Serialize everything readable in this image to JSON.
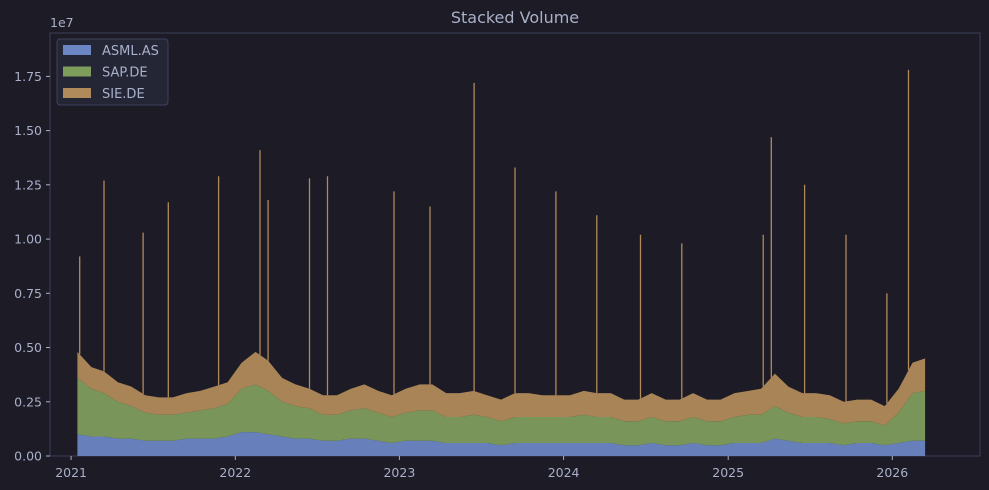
{
  "chart_data": {
    "type": "area",
    "stacked": true,
    "title": "Stacked Volume",
    "xlabel": "",
    "ylabel": "",
    "y_multiplier_label": "1e7",
    "x_tick_labels": [
      "2021",
      "2022",
      "2023",
      "2024",
      "2025",
      "2026"
    ],
    "y_tick_labels": [
      "0.00",
      "0.25",
      "0.50",
      "0.75",
      "1.00",
      "1.25",
      "1.50",
      "1.75"
    ],
    "y_ticks": [
      0,
      0.25,
      0.5,
      0.75,
      1.0,
      1.25,
      1.5,
      1.75
    ],
    "xlim": [
      "2020-11-15",
      "2026-07-15"
    ],
    "ylim": [
      0,
      1.95
    ],
    "grid": false,
    "legend_position": "top-left",
    "x": [
      "2021-01",
      "2021-02",
      "2021-03",
      "2021-04",
      "2021-05",
      "2021-06",
      "2021-07",
      "2021-08",
      "2021-09",
      "2021-10",
      "2021-11",
      "2021-12",
      "2022-01",
      "2022-02",
      "2022-03",
      "2022-04",
      "2022-05",
      "2022-06",
      "2022-07",
      "2022-08",
      "2022-09",
      "2022-10",
      "2022-11",
      "2022-12",
      "2023-01",
      "2023-02",
      "2023-03",
      "2023-04",
      "2023-05",
      "2023-06",
      "2023-07",
      "2023-08",
      "2023-09",
      "2023-10",
      "2023-11",
      "2023-12",
      "2024-01",
      "2024-02",
      "2024-03",
      "2024-04",
      "2024-05",
      "2024-06",
      "2024-07",
      "2024-08",
      "2024-09",
      "2024-10",
      "2024-11",
      "2024-12",
      "2025-01",
      "2025-02",
      "2025-03",
      "2025-04",
      "2025-05",
      "2025-06",
      "2025-07",
      "2025-08",
      "2025-09",
      "2025-10",
      "2025-11",
      "2025-12",
      "2026-01",
      "2026-02",
      "2026-03"
    ],
    "series": [
      {
        "name": "ASML.AS",
        "color": "#6c86c4",
        "values": [
          0.1,
          0.09,
          0.09,
          0.08,
          0.08,
          0.07,
          0.07,
          0.07,
          0.08,
          0.08,
          0.08,
          0.09,
          0.11,
          0.11,
          0.1,
          0.09,
          0.08,
          0.08,
          0.07,
          0.07,
          0.08,
          0.08,
          0.07,
          0.06,
          0.07,
          0.07,
          0.07,
          0.06,
          0.06,
          0.06,
          0.06,
          0.05,
          0.06,
          0.06,
          0.06,
          0.06,
          0.06,
          0.06,
          0.06,
          0.06,
          0.05,
          0.05,
          0.06,
          0.05,
          0.05,
          0.06,
          0.05,
          0.05,
          0.06,
          0.06,
          0.06,
          0.08,
          0.07,
          0.06,
          0.06,
          0.06,
          0.05,
          0.06,
          0.06,
          0.05,
          0.06,
          0.07,
          0.07
        ]
      },
      {
        "name": "SAP.DE",
        "color": "#7e9c5c",
        "values": [
          0.26,
          0.22,
          0.2,
          0.17,
          0.15,
          0.13,
          0.12,
          0.12,
          0.12,
          0.13,
          0.14,
          0.15,
          0.2,
          0.22,
          0.2,
          0.16,
          0.15,
          0.14,
          0.12,
          0.12,
          0.13,
          0.14,
          0.13,
          0.12,
          0.13,
          0.14,
          0.14,
          0.12,
          0.12,
          0.13,
          0.12,
          0.11,
          0.12,
          0.12,
          0.12,
          0.12,
          0.12,
          0.13,
          0.12,
          0.12,
          0.11,
          0.11,
          0.12,
          0.11,
          0.11,
          0.12,
          0.11,
          0.11,
          0.12,
          0.13,
          0.13,
          0.15,
          0.13,
          0.12,
          0.12,
          0.11,
          0.1,
          0.1,
          0.1,
          0.09,
          0.14,
          0.22,
          0.23
        ]
      },
      {
        "name": "SIE.DE",
        "color": "#b08a5a",
        "values": [
          0.12,
          0.1,
          0.1,
          0.09,
          0.09,
          0.08,
          0.08,
          0.08,
          0.09,
          0.09,
          0.1,
          0.1,
          0.12,
          0.15,
          0.14,
          0.11,
          0.1,
          0.09,
          0.09,
          0.09,
          0.1,
          0.11,
          0.1,
          0.1,
          0.11,
          0.12,
          0.12,
          0.11,
          0.11,
          0.11,
          0.1,
          0.1,
          0.11,
          0.11,
          0.1,
          0.1,
          0.1,
          0.11,
          0.11,
          0.11,
          0.1,
          0.1,
          0.11,
          0.1,
          0.1,
          0.11,
          0.1,
          0.1,
          0.11,
          0.11,
          0.12,
          0.15,
          0.12,
          0.11,
          0.11,
          0.11,
          0.1,
          0.1,
          0.1,
          0.09,
          0.11,
          0.14,
          0.15
        ]
      }
    ],
    "peaks": [
      {
        "date": "2021-01-20",
        "total": 0.92
      },
      {
        "date": "2021-03-15",
        "total": 1.27
      },
      {
        "date": "2021-06-10",
        "total": 1.03
      },
      {
        "date": "2021-08-05",
        "total": 1.17
      },
      {
        "date": "2021-11-25",
        "total": 1.29
      },
      {
        "date": "2022-02-25",
        "total": 1.41
      },
      {
        "date": "2022-03-15",
        "total": 1.18
      },
      {
        "date": "2022-06-15",
        "total": 1.28
      },
      {
        "date": "2022-07-25",
        "total": 1.29
      },
      {
        "date": "2022-12-20",
        "total": 1.22
      },
      {
        "date": "2023-03-10",
        "total": 1.15
      },
      {
        "date": "2023-06-16",
        "total": 1.72
      },
      {
        "date": "2023-09-15",
        "total": 1.33
      },
      {
        "date": "2023-12-15",
        "total": 1.22
      },
      {
        "date": "2024-03-15",
        "total": 1.11
      },
      {
        "date": "2024-06-20",
        "total": 1.02
      },
      {
        "date": "2024-09-20",
        "total": 0.98
      },
      {
        "date": "2025-03-20",
        "total": 1.02
      },
      {
        "date": "2025-04-07",
        "total": 1.47
      },
      {
        "date": "2025-06-20",
        "total": 1.25
      },
      {
        "date": "2025-09-20",
        "total": 1.02
      },
      {
        "date": "2025-12-20",
        "total": 0.75
      },
      {
        "date": "2026-02-06",
        "total": 1.78
      }
    ]
  }
}
